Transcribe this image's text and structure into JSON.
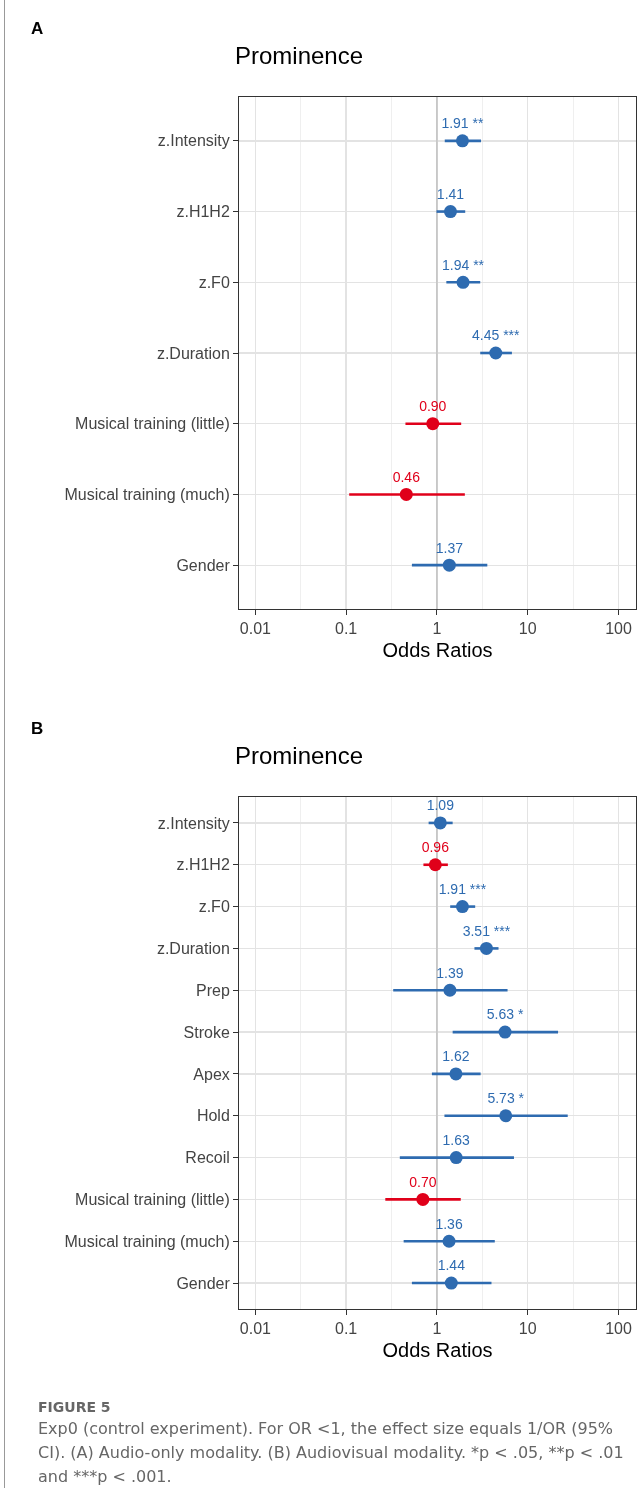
{
  "chart_data": [
    {
      "type": "scatter",
      "orientation": "horizontal",
      "title": "Prominence",
      "xlabel": "Odds Ratios",
      "annotations": [
        "A"
      ],
      "categories": [
        "z.Intensity",
        "z.H1H2",
        "z.F0",
        "z.Duration",
        "Musical training (little)",
        "Musical training (much)",
        "Gender"
      ],
      "values": [
        1.91,
        1.41,
        1.94,
        4.45,
        0.9,
        0.46,
        1.37
      ],
      "errors": [
        [
          1.22,
          3.06
        ],
        [
          0.99,
          2.05
        ],
        [
          1.27,
          3.0
        ],
        [
          3.0,
          6.7
        ],
        [
          0.45,
          1.85
        ],
        [
          0.108,
          2.03
        ],
        [
          0.53,
          3.59
        ]
      ],
      "value_labels": [
        "1.91 **",
        "1.41",
        "1.94 **",
        "4.45 ***",
        "0.90",
        "0.46",
        "1.37"
      ],
      "colors": [
        "#2e6bb0",
        "#2e6bb0",
        "#2e6bb0",
        "#2e6bb0",
        "#e0001a",
        "#e0001a",
        "#2e6bb0"
      ],
      "xlim": [
        0.0066,
        156
      ],
      "xticks": [
        0.01,
        0.1,
        1,
        10,
        100
      ],
      "log": "x",
      "grid": true,
      "marker": "circle",
      "legend": false,
      "ref_lines": [
        {
          "axis": "x",
          "value": 1,
          "color": "#bdbdbd"
        }
      ]
    },
    {
      "type": "scatter",
      "orientation": "horizontal",
      "title": "Prominence",
      "xlabel": "Odds Ratios",
      "annotations": [
        "B",
        "FIGURE 5",
        "Exp0 (control experiment). For OR <1, the effect size equals 1/OR (95% CI). (A) Audio-only modality. (B) Audiovisual modality. *p < .05, **p < .01 and ***p < .001."
      ],
      "categories": [
        "z.Intensity",
        "z.H1H2",
        "z.F0",
        "z.Duration",
        "Prep",
        "Stroke",
        "Apex",
        "Hold",
        "Recoil",
        "Musical training (little)",
        "Musical training (much)",
        "Gender"
      ],
      "values": [
        1.09,
        0.96,
        1.91,
        3.51,
        1.39,
        5.63,
        1.62,
        5.73,
        1.63,
        0.7,
        1.36,
        1.44
      ],
      "errors": [
        [
          0.81,
          1.49
        ],
        [
          0.71,
          1.32
        ],
        [
          1.4,
          2.64
        ],
        [
          2.59,
          4.77
        ],
        [
          0.33,
          6.0
        ],
        [
          1.49,
          21.6
        ],
        [
          0.88,
          3.03
        ],
        [
          1.21,
          27.6
        ],
        [
          0.39,
          7.06
        ],
        [
          0.27,
          1.83
        ],
        [
          0.43,
          4.34
        ],
        [
          0.53,
          3.99
        ]
      ],
      "value_labels": [
        "1.09",
        "0.96",
        "1.91 ***",
        "3.51 ***",
        "1.39",
        "5.63 *",
        "1.62",
        "5.73 *",
        "1.63",
        "0.70",
        "1.36",
        "1.44"
      ],
      "colors": [
        "#2e6bb0",
        "#e0001a",
        "#2e6bb0",
        "#2e6bb0",
        "#2e6bb0",
        "#2e6bb0",
        "#2e6bb0",
        "#2e6bb0",
        "#2e6bb0",
        "#e0001a",
        "#2e6bb0",
        "#2e6bb0"
      ],
      "xlim": [
        0.0066,
        156
      ],
      "xticks": [
        0.01,
        0.1,
        1,
        10,
        100
      ],
      "log": "x",
      "grid": true,
      "marker": "circle",
      "legend": false,
      "ref_lines": [
        {
          "axis": "x",
          "value": 1,
          "color": "#bdbdbd"
        }
      ]
    }
  ]
}
